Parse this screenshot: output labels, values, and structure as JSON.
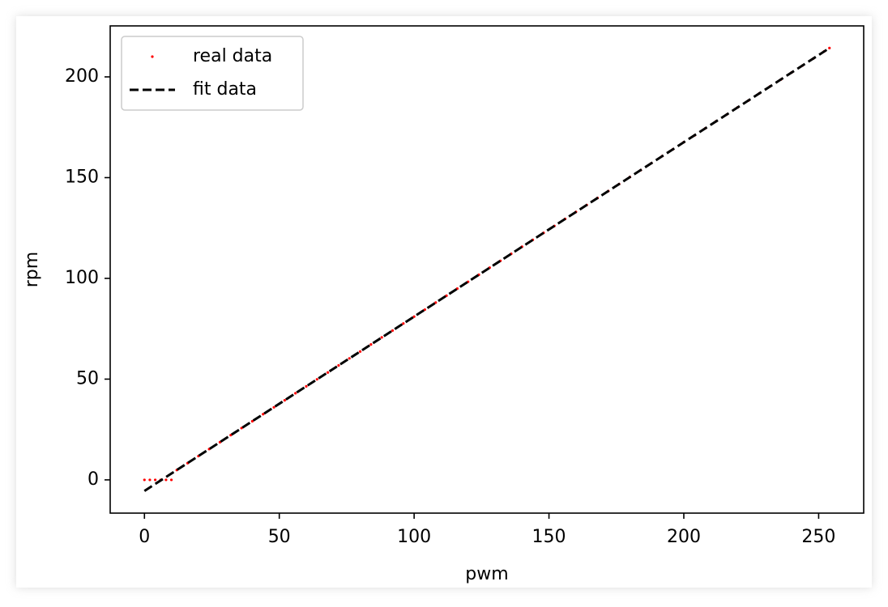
{
  "chart_data": {
    "type": "line",
    "x_label": "pwm",
    "y_label": "rpm",
    "series": [
      {
        "name": "real data",
        "color": "#ff0000",
        "linestyle": "none",
        "marker": "dot",
        "x": [
          0,
          2,
          4,
          6,
          8,
          10,
          12,
          16,
          20,
          24,
          28,
          32,
          36,
          40,
          44,
          48,
          52,
          56,
          60,
          64,
          68,
          72,
          76,
          80,
          84,
          88,
          92,
          96,
          100,
          104,
          108,
          112,
          116,
          120,
          124,
          128,
          132,
          136,
          140,
          144,
          148,
          152,
          156,
          160,
          164,
          168,
          172,
          176,
          180,
          184,
          188,
          192,
          196,
          200,
          204,
          208,
          212,
          216,
          220,
          224,
          228,
          232,
          236,
          240,
          244,
          248,
          252,
          254
        ],
        "values": [
          0,
          0,
          0,
          0,
          0,
          0,
          4.9,
          8.3,
          11.8,
          15.3,
          18.7,
          22.2,
          25.7,
          29.1,
          32.6,
          36.0,
          39.5,
          43.0,
          46.4,
          49.9,
          53.3,
          56.8,
          60.3,
          63.7,
          67.2,
          70.7,
          74.1,
          77.6,
          81.0,
          84.5,
          88.0,
          91.4,
          94.9,
          98.3,
          101.8,
          105.3,
          108.7,
          112.2,
          115.7,
          119.1,
          122.6,
          126.0,
          129.5,
          133.0,
          136.4,
          139.9,
          143.3,
          146.8,
          150.3,
          153.7,
          157.2,
          160.7,
          164.1,
          167.6,
          171.0,
          174.5,
          178.0,
          181.4,
          184.9,
          188.3,
          191.8,
          195.3,
          198.7,
          202.2,
          205.6,
          209.1,
          212.6,
          214.3
        ]
      },
      {
        "name": "fit data",
        "color": "#000000",
        "linestyle": "dashed",
        "marker": "none",
        "x": [
          0,
          254
        ],
        "values": [
          -5.5,
          214.3
        ]
      }
    ],
    "xlim": [
      -12.7,
      266.7
    ],
    "xticks": [
      0,
      50,
      100,
      150,
      200,
      250
    ],
    "ylim": [
      -16.5,
      225.3
    ],
    "yticks": [
      0,
      50,
      100,
      150,
      200
    ],
    "grid": false,
    "legend": "upper left"
  }
}
